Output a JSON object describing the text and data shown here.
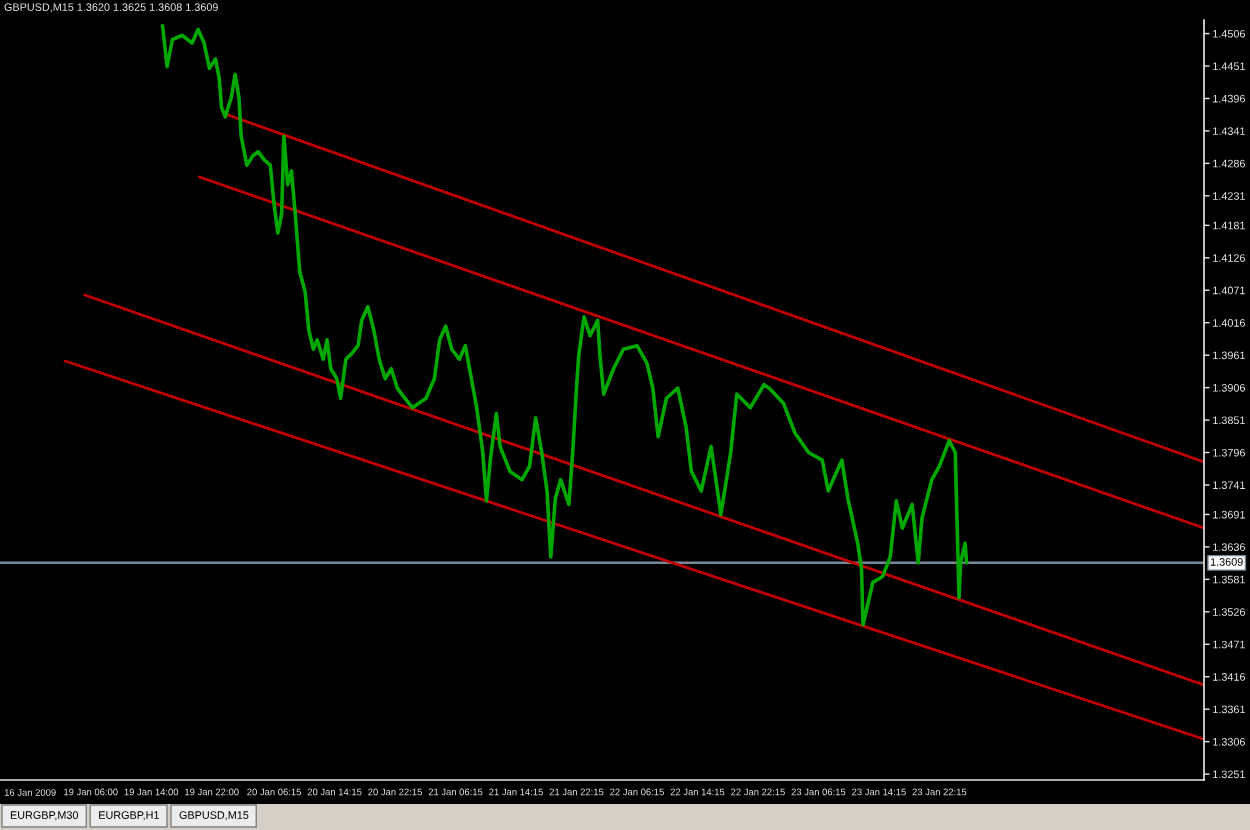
{
  "chart_data": {
    "type": "line",
    "title": "GBPUSD,M15 1.3620 1.3625 1.3608 1.3609",
    "series": [
      {
        "color": "#00a800",
        "x": [
          "2009-01-19T15:30",
          "2009-01-19T16:06",
          "2009-01-19T16:48",
          "2009-01-19T18:06",
          "2009-01-19T19:24",
          "2009-01-19T20:12",
          "2009-01-19T21:00",
          "2009-01-19T21:42",
          "2009-01-19T22:30",
          "2009-01-19T23:00",
          "2009-01-19T23:18",
          "2009-01-19T23:48",
          "2009-01-20T00:36",
          "2009-01-20T01:06",
          "2009-01-20T01:36",
          "2009-01-20T01:54",
          "2009-01-20T02:39",
          "2009-01-20T03:27",
          "2009-01-20T04:09",
          "2009-01-20T04:57",
          "2009-01-20T05:45",
          "2009-01-20T06:15",
          "2009-01-20T06:45",
          "2009-01-20T07:15",
          "2009-01-20T07:33",
          "2009-01-20T08:03",
          "2009-01-20T08:33",
          "2009-01-20T09:03",
          "2009-01-20T09:39",
          "2009-01-20T10:21",
          "2009-01-20T10:51",
          "2009-01-20T11:27",
          "2009-01-20T11:57",
          "2009-01-20T12:45",
          "2009-01-20T13:15",
          "2009-01-20T13:45",
          "2009-01-20T14:33",
          "2009-01-20T15:03",
          "2009-01-20T15:45",
          "2009-01-20T16:33",
          "2009-01-20T17:21",
          "2009-01-20T17:51",
          "2009-01-20T18:39",
          "2009-01-20T19:27",
          "2009-01-20T20:09",
          "2009-01-20T20:57",
          "2009-01-20T21:45",
          "2009-01-20T22:33",
          "2009-01-20T23:33",
          "2009-01-21T00:33",
          "2009-01-21T01:21",
          "2009-01-21T02:21",
          "2009-01-21T03:27",
          "2009-01-21T04:09",
          "2009-01-21T04:57",
          "2009-01-21T05:45",
          "2009-01-21T06:45",
          "2009-01-21T07:33",
          "2009-01-21T08:21",
          "2009-01-21T09:03",
          "2009-01-21T09:39",
          "2009-01-21T09:51",
          "2009-01-21T10:21",
          "2009-01-21T10:51",
          "2009-01-21T11:39",
          "2009-01-21T12:09",
          "2009-01-21T13:27",
          "2009-01-21T15:03",
          "2009-01-21T16:03",
          "2009-01-21T16:51",
          "2009-01-21T17:39",
          "2009-01-21T18:21",
          "2009-01-21T18:51",
          "2009-01-21T19:27",
          "2009-01-21T20:09",
          "2009-01-21T21:15",
          "2009-01-21T21:45",
          "2009-01-21T22:15",
          "2009-01-21T22:33",
          "2009-01-21T23:15",
          "2009-01-22T00:03",
          "2009-01-22T01:03",
          "2009-01-22T01:21",
          "2009-01-22T01:51",
          "2009-01-22T03:09",
          "2009-01-22T04:27",
          "2009-01-22T06:15",
          "2009-01-22T07:33",
          "2009-01-22T08:21",
          "2009-01-22T09:03",
          "2009-01-22T10:09",
          "2009-01-22T11:39",
          "2009-01-22T12:45",
          "2009-01-22T13:27",
          "2009-01-22T14:45",
          "2009-01-22T16:03",
          "2009-01-22T17:21",
          "2009-01-22T18:39",
          "2009-01-22T19:27",
          "2009-01-22T21:15",
          "2009-01-22T23:03",
          "2009-01-22T23:45",
          "2009-01-23T01:39",
          "2009-01-23T03:09",
          "2009-01-23T04:57",
          "2009-01-23T06:45",
          "2009-01-23T07:33",
          "2009-01-23T09:21",
          "2009-01-23T10:09",
          "2009-01-23T11:27",
          "2009-01-23T11:57",
          "2009-01-23T12:09",
          "2009-01-23T13:27",
          "2009-01-23T14:45",
          "2009-01-23T15:45",
          "2009-01-23T16:33",
          "2009-01-23T17:21",
          "2009-01-23T18:39",
          "2009-01-23T19:27",
          "2009-01-23T19:57",
          "2009-01-23T21:15",
          "2009-01-23T22:15",
          "2009-01-23T23:33",
          "2009-01-24T00:21",
          "2009-01-24T00:51",
          "2009-01-24T01:03",
          "2009-01-24T01:39",
          "2009-01-24T01:51"
        ],
        "values": [
          1.4519,
          1.445,
          1.4496,
          1.4503,
          1.449,
          1.4513,
          1.449,
          1.4447,
          1.4463,
          1.443,
          1.4381,
          1.4365,
          1.4398,
          1.4437,
          1.4398,
          1.4332,
          1.4283,
          1.4299,
          1.4306,
          1.4292,
          1.4283,
          1.4217,
          1.4168,
          1.42,
          1.4332,
          1.425,
          1.4273,
          1.42,
          1.4102,
          1.4069,
          1.4003,
          1.3971,
          1.3987,
          1.3954,
          1.3987,
          1.3938,
          1.3921,
          1.3888,
          1.3954,
          1.3964,
          1.3977,
          1.402,
          1.4043,
          1.4003,
          1.3954,
          1.3921,
          1.3938,
          1.3905,
          1.3888,
          1.3872,
          1.3879,
          1.3888,
          1.3921,
          1.3987,
          1.401,
          1.3971,
          1.3954,
          1.3977,
          1.3921,
          1.3872,
          1.3816,
          1.3796,
          1.3714,
          1.3783,
          1.3862,
          1.3806,
          1.3764,
          1.375,
          1.3773,
          1.3855,
          1.3796,
          1.3731,
          1.3619,
          1.3718,
          1.375,
          1.3708,
          1.3796,
          1.3905,
          1.3961,
          1.4026,
          1.3994,
          1.402,
          1.3961,
          1.3895,
          1.3938,
          1.3971,
          1.3977,
          1.3948,
          1.3905,
          1.3823,
          1.3888,
          1.3905,
          1.3839,
          1.3764,
          1.3731,
          1.3806,
          1.3691,
          1.3796,
          1.3895,
          1.3872,
          1.3911,
          1.3905,
          1.3879,
          1.3829,
          1.3796,
          1.3783,
          1.3731,
          1.3783,
          1.3718,
          1.3642,
          1.3599,
          1.3504,
          1.3576,
          1.3586,
          1.3619,
          1.3714,
          1.3668,
          1.3708,
          1.3609,
          1.3685,
          1.375,
          1.3773,
          1.3816,
          1.3796,
          1.355,
          1.3609,
          1.3642,
          1.3609
        ]
      },
      {
        "color": "#c00000",
        "x": [
          "2009-01-19T23:30",
          "2009-01-25T09:15"
        ],
        "values": [
          1.4371,
          1.378
        ]
      },
      {
        "color": "#c00000",
        "x": [
          "2009-01-19T20:24",
          "2009-01-25T09:15"
        ],
        "values": [
          1.4263,
          1.3668
        ]
      },
      {
        "color": "#c00000",
        "x": [
          "2009-01-19T05:12",
          "2009-01-25T09:15"
        ],
        "values": [
          1.4063,
          1.3402
        ]
      },
      {
        "color": "#c00000",
        "x": [
          "2009-01-19T02:36",
          "2009-01-25T09:15"
        ],
        "values": [
          1.3951,
          1.331
        ]
      }
    ],
    "xlim": [
      "2009-01-18T18:00",
      "2009-01-25T09:15"
    ],
    "xticks": [
      {
        "value": "2009-01-19T06:00",
        "label": "19 Jan 06:00"
      },
      {
        "value": "2009-01-19T14:00",
        "label": "19 Jan 14:00"
      },
      {
        "value": "2009-01-19T22:00",
        "label": "19 Jan 22:00"
      },
      {
        "value": "2009-01-20T06:15",
        "label": "20 Jan 06:15"
      },
      {
        "value": "2009-01-20T14:15",
        "label": "20 Jan 14:15"
      },
      {
        "value": "2009-01-20T22:15",
        "label": "20 Jan 22:15"
      },
      {
        "value": "2009-01-21T06:15",
        "label": "21 Jan 06:15"
      },
      {
        "value": "2009-01-21T14:15",
        "label": "21 Jan 14:15"
      },
      {
        "value": "2009-01-21T22:15",
        "label": "21 Jan 22:15"
      },
      {
        "value": "2009-01-22T06:15",
        "label": "22 Jan 06:15"
      },
      {
        "value": "2009-01-22T14:15",
        "label": "22 Jan 14:15"
      },
      {
        "value": "2009-01-22T22:15",
        "label": "22 Jan 22:15"
      },
      {
        "value": "2009-01-23T06:15",
        "label": "23 Jan 06:15"
      },
      {
        "value": "2009-01-23T14:15",
        "label": "23 Jan 14:15"
      },
      {
        "value": "2009-01-23T22:15",
        "label": "23 Jan 22:15"
      }
    ],
    "ylim": [
      1.3241,
      1.4529
    ],
    "yticks": [
      1.4506,
      1.4451,
      1.4396,
      1.4341,
      1.4286,
      1.4231,
      1.4181,
      1.4126,
      1.4071,
      1.4016,
      1.3961,
      1.3906,
      1.3851,
      1.3796,
      1.3741,
      1.3691,
      1.3636,
      1.3581,
      1.3526,
      1.3471,
      1.3416,
      1.3361,
      1.3306,
      1.3251
    ],
    "ref_lines": [
      {
        "axis": "y",
        "value": 1.3609,
        "label": "1.3609",
        "color": "#778899"
      }
    ],
    "annotations": [
      "16 Jan 2009",
      "EURGBP,M30",
      "EURGBP,H1",
      "GBPUSD,M15"
    ],
    "grid": false,
    "legend": false,
    "marker": "none",
    "line_style": "solid"
  }
}
